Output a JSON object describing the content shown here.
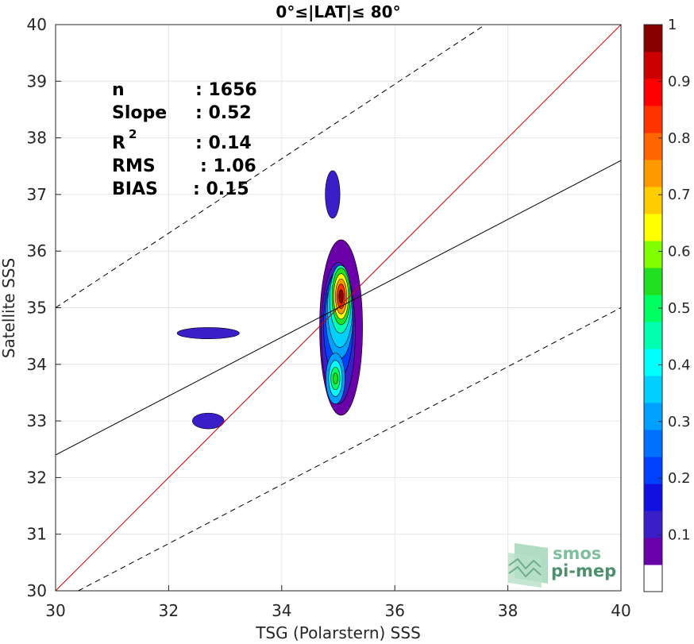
{
  "chart_data": {
    "type": "contour",
    "title": "0°≤|LAT|≤ 80°",
    "xlabel": "TSG (Polarstern) SSS",
    "ylabel": "Satellite SSS",
    "xlim": [
      30,
      40
    ],
    "ylim": [
      30,
      40
    ],
    "xticks": [
      "30",
      "32",
      "34",
      "36",
      "38",
      "40"
    ],
    "yticks": [
      "30",
      "31",
      "32",
      "33",
      "34",
      "35",
      "36",
      "37",
      "38",
      "39",
      "40"
    ],
    "grid": true,
    "stats": [
      {
        "label": "n",
        "value": ": 1656"
      },
      {
        "label": "Slope",
        "value": ": 0.52"
      },
      {
        "label": "R",
        "sup": "2",
        "value": ": 0.14"
      },
      {
        "label": "RMS",
        "value": ": 1.06"
      },
      {
        "label": "BIAS",
        "value": ": 0.15"
      }
    ],
    "lines": {
      "identity": {
        "x": [
          30,
          40
        ],
        "y": [
          30,
          40
        ],
        "color": "#cc0000"
      },
      "fit": {
        "x": [
          30,
          40
        ],
        "y": [
          32.4,
          37.6
        ],
        "color": "#000000"
      },
      "upper_bound": {
        "x": [
          30,
          37.6
        ],
        "y": [
          35,
          40
        ],
        "color": "#000000"
      },
      "lower_bound": {
        "x": [
          30.4,
          40
        ],
        "y": [
          30,
          35
        ],
        "color": "#000000"
      }
    },
    "density_peaks": [
      {
        "x": 35.05,
        "y": 35.2,
        "value": 1.0
      },
      {
        "x": 34.95,
        "y": 33.75,
        "value": 0.55
      },
      {
        "x": 34.9,
        "y": 37.0,
        "value": 0.1
      },
      {
        "x": 32.7,
        "y": 34.55,
        "value": 0.1
      },
      {
        "x": 32.7,
        "y": 33.0,
        "value": 0.1
      }
    ],
    "colorbar": {
      "ticks": [
        "0.1",
        "0.2",
        "0.3",
        "0.4",
        "0.5",
        "0.6",
        "0.7",
        "0.8",
        "0.9",
        "1"
      ],
      "range": [
        0.0,
        1.0
      ],
      "levels": 20,
      "colors": [
        "#ffffff",
        "#6a00a8",
        "#3a1ec8",
        "#1010e0",
        "#0040ff",
        "#0070ff",
        "#00a0ff",
        "#00d0ff",
        "#00ffff",
        "#00ffb0",
        "#00ff60",
        "#20e020",
        "#80ff00",
        "#ffff00",
        "#ffcc00",
        "#ff9900",
        "#ff6600",
        "#ff3300",
        "#ff0000",
        "#cc0000",
        "#880000"
      ]
    }
  },
  "logo": {
    "line1": "smos",
    "line2": "pi-mep"
  }
}
